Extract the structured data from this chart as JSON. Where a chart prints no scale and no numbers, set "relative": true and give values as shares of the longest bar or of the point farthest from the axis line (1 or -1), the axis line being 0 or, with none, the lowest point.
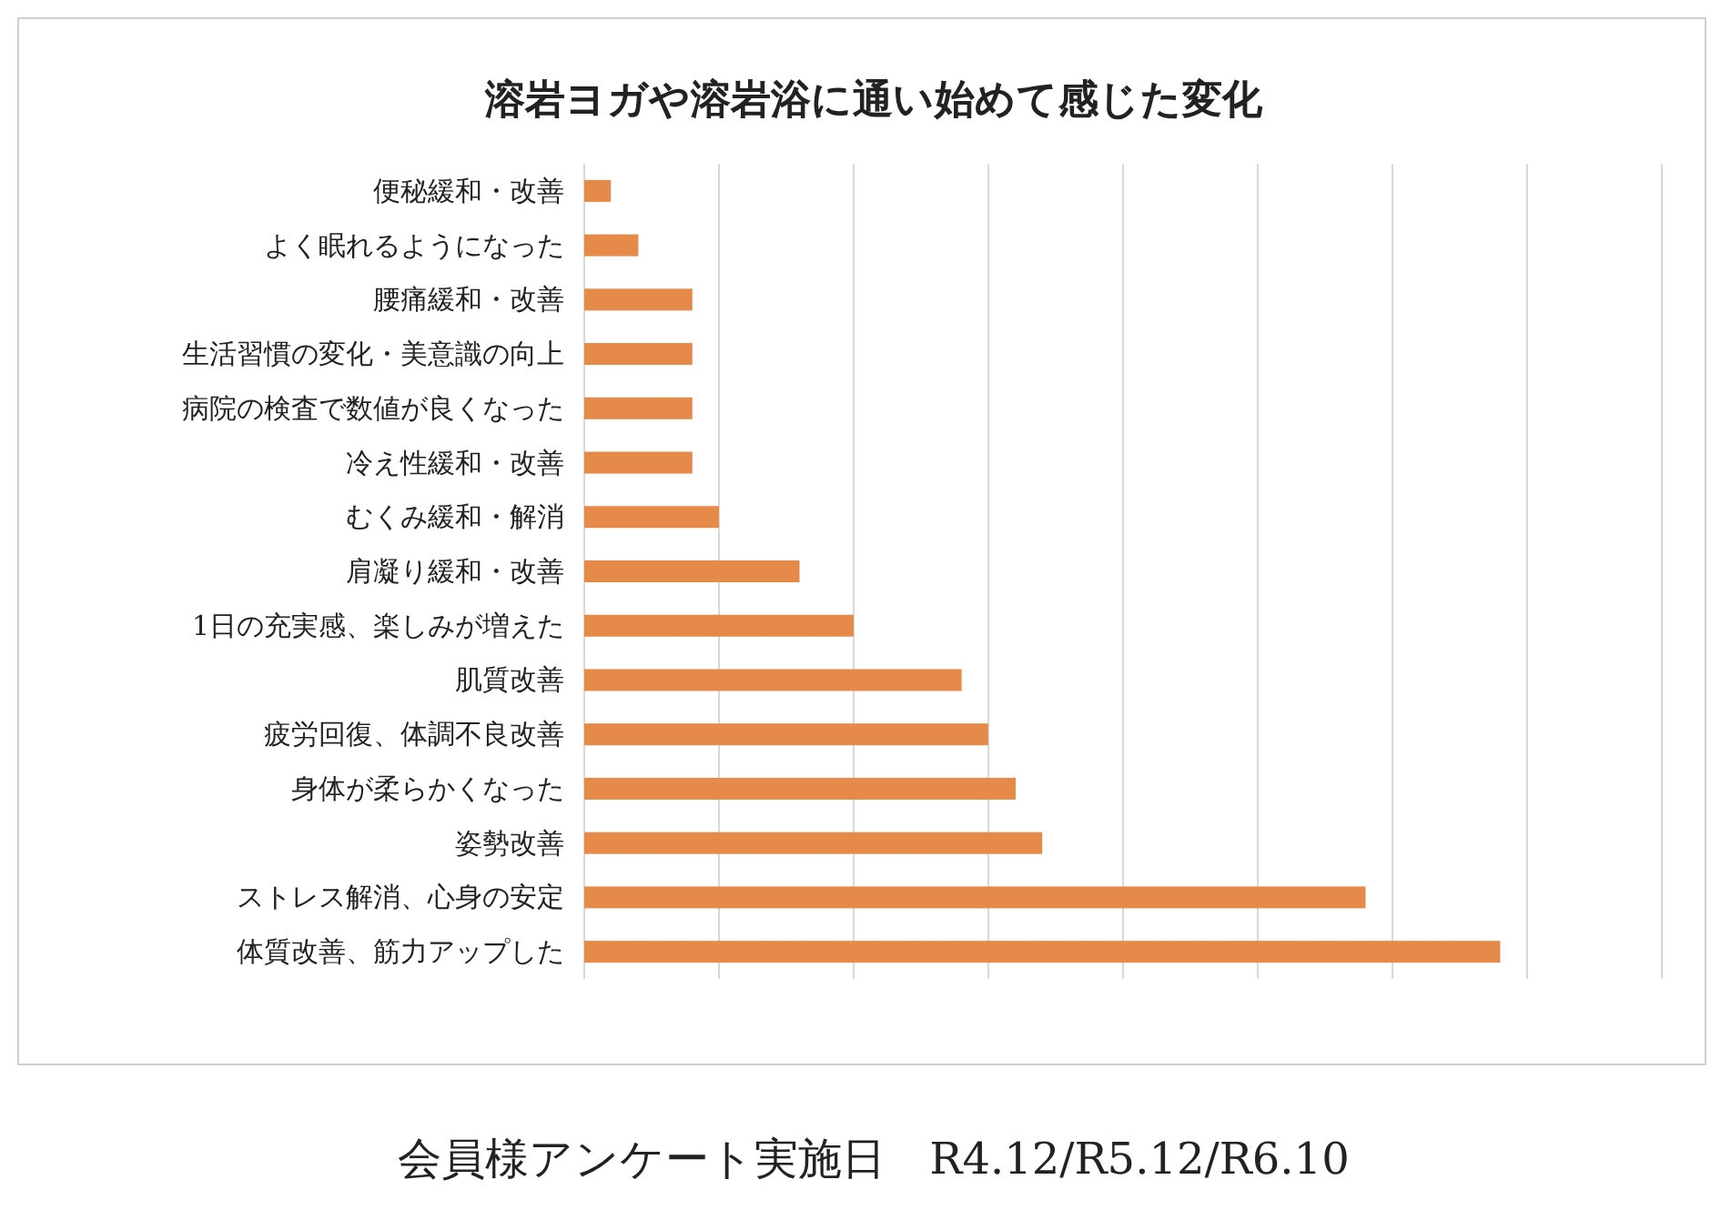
{
  "chart_data": {
    "type": "bar",
    "orientation": "horizontal",
    "relative": true,
    "title": "溶岩ヨガや溶岩浴に通い始めて感じた変化",
    "categories": [
      "便秘緩和・改善",
      "よく眠れるようになった",
      "腰痛緩和・改善",
      "生活習慣の変化・美意識の向上",
      "病院の検査で数値が良くなった",
      "冷え性緩和・改善",
      "むくみ緩和・解消",
      "肩凝り緩和・改善",
      "1日の充実感、楽しみが増えた",
      "肌質改善",
      "疲労回復、体調不良改善",
      "身体が柔らかくなった",
      "姿勢改善",
      "ストレス解消、心身の安定",
      "体質改善、筋力アップした"
    ],
    "values": [
      0.029,
      0.059,
      0.118,
      0.118,
      0.118,
      0.118,
      0.147,
      0.235,
      0.294,
      0.412,
      0.441,
      0.471,
      0.5,
      0.853,
      1
    ],
    "color": "#e58a49",
    "grid": "x",
    "annotations": [
      "会員様アンケート実施日　R4.12/R5.12/R6.10"
    ]
  }
}
